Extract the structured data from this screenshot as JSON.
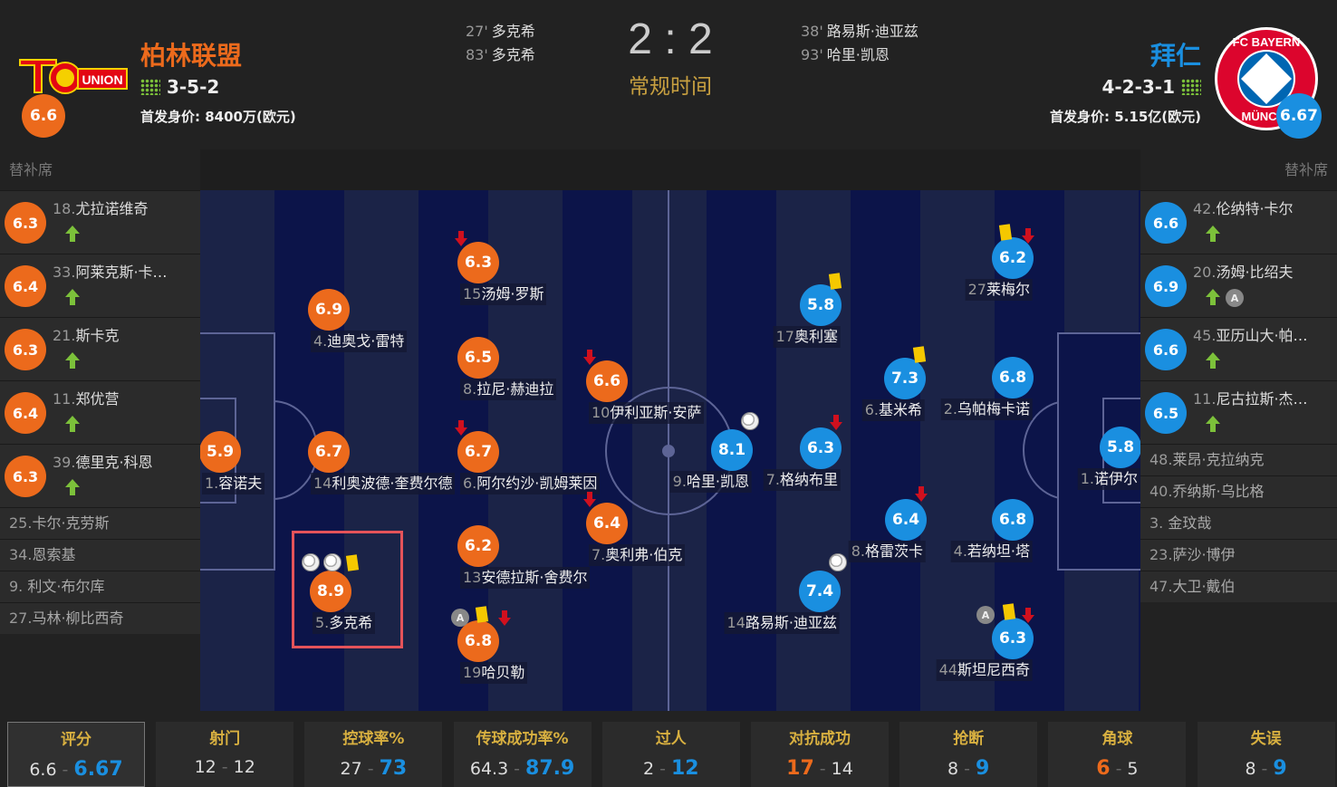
{
  "home": {
    "name": "柏林联盟",
    "formation": "3-5-2",
    "market_value": "首发身价: 8400万(欧元)",
    "rating": "6.6",
    "logo_text": "1.FC UNION",
    "color": "#ec6a1c",
    "scorers": [
      {
        "minute": "27'",
        "name": "多克希"
      },
      {
        "minute": "83'",
        "name": "多克希"
      }
    ]
  },
  "away": {
    "name": "拜仁",
    "formation": "4-2-3-1",
    "market_value": "首发身价: 5.15亿(欧元)",
    "rating": "6.67",
    "logo_text": "FC BAYERN MÜNCHEN",
    "color": "#1a8fe0",
    "scorers": [
      {
        "minute": "38'",
        "name": "路易斯·迪亚兹"
      },
      {
        "minute": "93'",
        "name": "哈里·凯恩"
      }
    ]
  },
  "score": {
    "home": "2",
    "sep": ":",
    "away": "2",
    "period": "常规时间"
  },
  "bench_label": "替补席",
  "home_bench": [
    {
      "num": "18.",
      "name": "尤拉诺维奇",
      "rating": "6.3",
      "events": [
        "sub-in"
      ]
    },
    {
      "num": "33.",
      "name": "阿莱克斯·卡…",
      "rating": "6.4",
      "events": [
        "sub-in"
      ]
    },
    {
      "num": "21.",
      "name": "斯卡克",
      "rating": "6.3",
      "events": [
        "sub-in"
      ]
    },
    {
      "num": "11.",
      "name": "郑优营",
      "rating": "6.4",
      "events": [
        "sub-in"
      ]
    },
    {
      "num": "39.",
      "name": "德里克·科恩",
      "rating": "6.3",
      "events": [
        "sub-in"
      ]
    },
    {
      "num": "25.",
      "name": "卡尔·克劳斯"
    },
    {
      "num": "34.",
      "name": "恩索基"
    },
    {
      "num": " 9. ",
      "name": "利文·布尔库"
    },
    {
      "num": "27.",
      "name": "马林·柳比西奇"
    }
  ],
  "away_bench": [
    {
      "num": "42.",
      "name": "伦纳特·卡尔",
      "rating": "6.6",
      "events": [
        "sub-in"
      ]
    },
    {
      "num": "20.",
      "name": "汤姆·比绍夫",
      "rating": "6.9",
      "events": [
        "sub-in",
        "captain"
      ]
    },
    {
      "num": "45.",
      "name": "亚历山大·帕…",
      "rating": "6.6",
      "events": [
        "sub-in"
      ]
    },
    {
      "num": "11.",
      "name": "尼古拉斯·杰…",
      "rating": "6.5",
      "events": [
        "sub-in"
      ]
    },
    {
      "num": "48.",
      "name": "莱昂·克拉纳克"
    },
    {
      "num": "40.",
      "name": "乔纳斯·乌比格"
    },
    {
      "num": " 3. ",
      "name": "金玟哉"
    },
    {
      "num": "23.",
      "name": "萨沙·博伊"
    },
    {
      "num": "47.",
      "name": "大卫·戴伯"
    }
  ],
  "home_lineup": [
    {
      "num": "1.",
      "name": "容诺夫",
      "rating": "5.9",
      "events": []
    },
    {
      "num": "4.",
      "name": "迪奥戈·雷特",
      "rating": "6.9",
      "events": []
    },
    {
      "num": "14",
      "name": "利奥波德·奎费尔德",
      "rating": "6.7",
      "events": []
    },
    {
      "num": "5.",
      "name": "多克希",
      "rating": "8.9",
      "events": [
        "goal",
        "goal",
        "yellow-card"
      ],
      "highlighted": true
    },
    {
      "num": "15",
      "name": "汤姆·罗斯",
      "rating": "6.3",
      "events": [
        "sub-out"
      ]
    },
    {
      "num": "8.",
      "name": "拉尼·赫迪拉",
      "rating": "6.5",
      "events": []
    },
    {
      "num": "6.",
      "name": "阿尔约沙·凯姆莱因",
      "rating": "6.7",
      "events": [
        "sub-out"
      ]
    },
    {
      "num": "13",
      "name": "安德拉斯·舍费尔",
      "rating": "6.2",
      "events": []
    },
    {
      "num": "19",
      "name": "哈贝勒",
      "rating": "6.8",
      "events": [
        "captain",
        "yellow-card",
        "sub-out"
      ]
    },
    {
      "num": "10",
      "name": "伊利亚斯·安萨",
      "rating": "6.6",
      "events": [
        "sub-out"
      ]
    },
    {
      "num": "7.",
      "name": "奥利弗·伯克",
      "rating": "6.4",
      "events": [
        "sub-out"
      ]
    }
  ],
  "away_lineup": [
    {
      "num": "1.",
      "name": "诺伊尔",
      "rating": "5.8",
      "events": []
    },
    {
      "num": "27",
      "name": "莱梅尔",
      "rating": "6.2",
      "events": [
        "yellow-card",
        "sub-out"
      ]
    },
    {
      "num": "2.",
      "name": "乌帕梅卡诺",
      "rating": "6.8",
      "events": []
    },
    {
      "num": "4.",
      "name": "若纳坦·塔",
      "rating": "6.8",
      "events": []
    },
    {
      "num": "44",
      "name": "斯坦尼西奇",
      "rating": "6.3",
      "events": [
        "captain",
        "yellow-card",
        "sub-out"
      ]
    },
    {
      "num": "6.",
      "name": "基米希",
      "rating": "7.3",
      "events": [
        "yellow-card"
      ]
    },
    {
      "num": "8.",
      "name": "格雷茨卡",
      "rating": "6.4",
      "events": [
        "sub-out"
      ]
    },
    {
      "num": "17",
      "name": "奥利塞",
      "rating": "5.8",
      "events": [
        "yellow-card"
      ]
    },
    {
      "num": "7.",
      "name": "格纳布里",
      "rating": "6.3",
      "events": [
        "sub-out"
      ]
    },
    {
      "num": "14",
      "name": "路易斯·迪亚兹",
      "rating": "7.4",
      "events": [
        "goal"
      ]
    },
    {
      "num": "9.",
      "name": "哈里·凯恩",
      "rating": "8.1",
      "events": [
        "goal"
      ]
    }
  ],
  "stats": [
    {
      "label": "评分",
      "home": "6.6",
      "away": "6.67",
      "leader": "away",
      "selected": true
    },
    {
      "label": "射门",
      "home": "12",
      "away": "12",
      "leader": "none"
    },
    {
      "label": "控球率%",
      "home": "27",
      "away": "73",
      "leader": "away"
    },
    {
      "label": "传球成功率%",
      "home": "64.3",
      "away": "87.9",
      "leader": "away"
    },
    {
      "label": "过人",
      "home": "2",
      "away": "12",
      "leader": "away"
    },
    {
      "label": "对抗成功",
      "home": "17",
      "away": "14",
      "leader": "home"
    },
    {
      "label": "抢断",
      "home": "8",
      "away": "9",
      "leader": "away"
    },
    {
      "label": "角球",
      "home": "6",
      "away": "5",
      "leader": "home"
    },
    {
      "label": "失误",
      "home": "8",
      "away": "9",
      "leader": "away"
    }
  ],
  "stat_separator": "-"
}
